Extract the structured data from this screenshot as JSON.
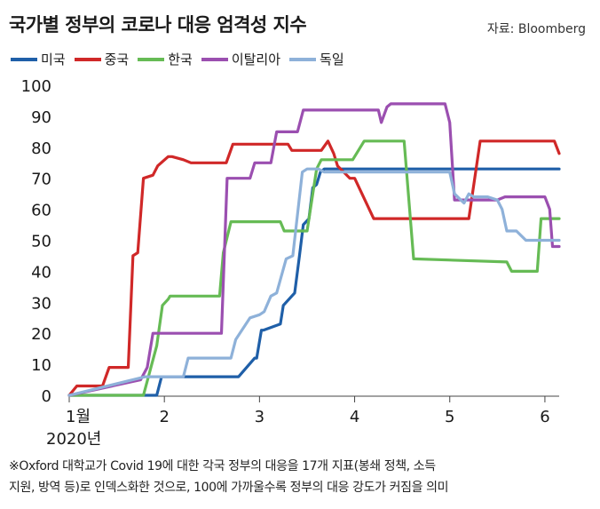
{
  "header": {
    "title": "국가별 정부의 코로나 대응 엄격성 지수",
    "source": "자료: Bloomberg"
  },
  "chart_data": {
    "type": "line",
    "title": "국가별 정부의 코로나 대응 엄격성 지수",
    "xlabel": "",
    "ylabel": "",
    "xlim": [
      1,
      6.15
    ],
    "ylim": [
      0,
      100
    ],
    "y_ticks": [
      0,
      10,
      20,
      30,
      40,
      50,
      60,
      70,
      80,
      90,
      100
    ],
    "x_ticks": [
      {
        "value": 1,
        "label": "1월"
      },
      {
        "value": 2,
        "label": "2"
      },
      {
        "value": 3,
        "label": "3"
      },
      {
        "value": 4,
        "label": "4"
      },
      {
        "value": 5,
        "label": "5"
      },
      {
        "value": 6,
        "label": "6"
      }
    ],
    "x_sublabel": "2020년",
    "grid": false,
    "legend_position": "top-left",
    "series": [
      {
        "name": "미국",
        "color": "#1f5fa8",
        "x": [
          1.0,
          1.92,
          1.97,
          2.78,
          2.95,
          2.97,
          3.02,
          3.04,
          3.22,
          3.25,
          3.37,
          3.42,
          3.46,
          3.52,
          3.56,
          3.6,
          3.64,
          3.68,
          4.0,
          5.0,
          6.15
        ],
        "y": [
          0,
          0,
          6,
          6,
          12,
          12,
          21,
          21,
          23,
          29,
          33,
          45,
          55,
          57,
          67,
          68,
          72,
          73,
          73,
          73,
          73
        ]
      },
      {
        "name": "중국",
        "color": "#d02828",
        "x": [
          1.0,
          1.08,
          1.14,
          1.35,
          1.42,
          1.62,
          1.67,
          1.72,
          1.78,
          1.88,
          1.93,
          2.04,
          2.08,
          2.2,
          2.28,
          2.65,
          2.72,
          3.3,
          3.34,
          3.65,
          3.72,
          3.78,
          3.82,
          3.95,
          4.0,
          4.2,
          4.25,
          5.2,
          5.32,
          6.1,
          6.15
        ],
        "y": [
          0,
          3,
          3,
          3,
          9,
          9,
          45,
          46,
          70,
          71,
          74,
          77,
          77,
          76,
          75,
          75,
          81,
          81,
          79,
          79,
          82,
          78,
          74,
          70,
          70,
          57,
          57,
          57,
          82,
          82,
          78
        ]
      },
      {
        "name": "한국",
        "color": "#66bb55",
        "x": [
          1.0,
          1.5,
          1.78,
          1.92,
          1.98,
          2.04,
          2.06,
          2.58,
          2.62,
          2.7,
          3.22,
          3.26,
          3.5,
          3.6,
          3.65,
          3.98,
          4.1,
          4.52,
          4.62,
          5.6,
          5.65,
          5.92,
          5.96,
          6.15
        ],
        "y": [
          0,
          0,
          0,
          16,
          29,
          31,
          32,
          32,
          46,
          56,
          56,
          53,
          53,
          73,
          76,
          76,
          82,
          82,
          44,
          43,
          40,
          40,
          57,
          57
        ]
      },
      {
        "name": "이탈리아",
        "color": "#9b4fb0",
        "x": [
          1.0,
          1.75,
          1.82,
          1.88,
          2.6,
          2.66,
          2.9,
          2.95,
          3.12,
          3.18,
          3.4,
          3.46,
          3.62,
          4.25,
          4.28,
          4.34,
          4.38,
          4.95,
          5.0,
          5.05,
          5.5,
          5.58,
          6.0,
          6.05,
          6.08,
          6.15
        ],
        "y": [
          0,
          5,
          9,
          20,
          20,
          70,
          70,
          75,
          75,
          85,
          85,
          92,
          92,
          92,
          88,
          93,
          94,
          94,
          88,
          63,
          63,
          64,
          64,
          60,
          48,
          48
        ]
      },
      {
        "name": "독일",
        "color": "#8eb1d9",
        "x": [
          1.0,
          1.8,
          1.85,
          1.95,
          2.0,
          2.2,
          2.25,
          2.7,
          2.75,
          2.9,
          3.0,
          3.05,
          3.12,
          3.18,
          3.28,
          3.35,
          3.45,
          3.5,
          3.62,
          3.68,
          4.8,
          4.9,
          5.0,
          5.05,
          5.15,
          5.2,
          5.25,
          5.4,
          5.5,
          5.55,
          5.6,
          5.7,
          5.8,
          5.85,
          6.15
        ],
        "y": [
          0,
          6,
          6,
          6,
          6,
          6,
          12,
          12,
          18,
          25,
          26,
          27,
          32,
          33,
          44,
          45,
          72,
          73,
          73,
          72,
          72,
          72,
          72,
          65,
          62,
          65,
          64,
          64,
          63,
          60,
          53,
          53,
          50,
          50,
          50
        ]
      }
    ]
  },
  "footnote": {
    "line1": "※Oxford 대학교가 Covid 19에 대한 각국 정부의 대응을 17개 지표(봉쇄 정책, 소득",
    "line2": "지원, 방역 등)로 인덱스화한 것으로, 100에 가까울수록 정부의 대응 강도가 커짐을 의미"
  }
}
